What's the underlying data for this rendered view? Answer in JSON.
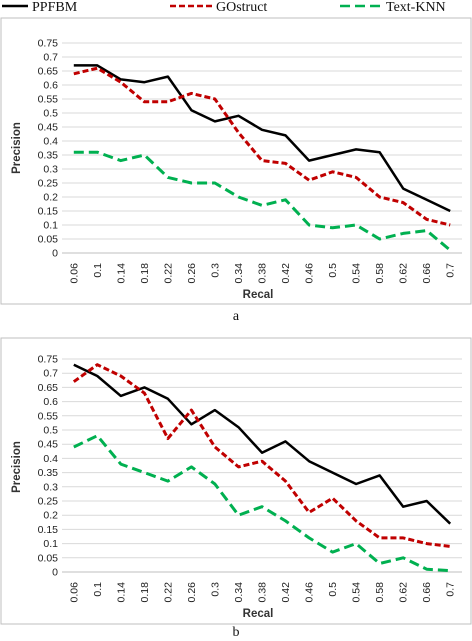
{
  "legend": [
    {
      "name": "PPFBM",
      "color": "#000000",
      "dash": "solid"
    },
    {
      "name": "GOstruct",
      "color": "#c00000",
      "dash": "dashed"
    },
    {
      "name": "Text-KNN",
      "color": "#00b050",
      "dash": "dashed"
    }
  ],
  "chart_data": [
    {
      "type": "line",
      "caption": "a",
      "xlabel": "Recal",
      "ylabel": "Precision",
      "ylim": [
        0,
        0.75
      ],
      "y_ticks": [
        "0",
        "0.05",
        "0.1",
        "0.15",
        "0.2",
        "0.25",
        "0.3",
        "0.35",
        "0.4",
        "0.45",
        "0.5",
        "0.55",
        "0.6",
        "0.65",
        "0.7",
        "0.75"
      ],
      "grid": "horizontal",
      "x": [
        "0.06",
        "0.1",
        "0.14",
        "0.18",
        "0.22",
        "0.26",
        "0.3",
        "0.34",
        "0.38",
        "0.42",
        "0.46",
        "0.5",
        "0.54",
        "0.58",
        "0.62",
        "0.66",
        "0.7"
      ],
      "series": [
        {
          "name": "PPFBM",
          "values": [
            0.67,
            0.67,
            0.62,
            0.61,
            0.63,
            0.51,
            0.47,
            0.49,
            0.44,
            0.42,
            0.33,
            0.35,
            0.37,
            0.36,
            0.23,
            0.19,
            0.15
          ]
        },
        {
          "name": "GOstruct",
          "values": [
            0.64,
            0.66,
            0.61,
            0.54,
            0.54,
            0.57,
            0.55,
            0.43,
            0.33,
            0.32,
            0.26,
            0.29,
            0.27,
            0.2,
            0.18,
            0.12,
            0.1
          ]
        },
        {
          "name": "Text-KNN",
          "values": [
            0.36,
            0.36,
            0.33,
            0.35,
            0.27,
            0.25,
            0.25,
            0.2,
            0.17,
            0.19,
            0.1,
            0.09,
            0.1,
            0.05,
            0.07,
            0.08,
            0.01
          ]
        }
      ]
    },
    {
      "type": "line",
      "caption": "b",
      "xlabel": "Recal",
      "ylabel": "Precision",
      "ylim": [
        0,
        0.75
      ],
      "y_ticks": [
        "0",
        "0.05",
        "0.1",
        "0.15",
        "0.2",
        "0.25",
        "0.3",
        "0.35",
        "0.4",
        "0.45",
        "0.5",
        "0.55",
        "0.6",
        "0.65",
        "0.7",
        "0.75"
      ],
      "grid": "horizontal",
      "x": [
        "0.06",
        "0.1",
        "0.14",
        "0.18",
        "0.22",
        "0.26",
        "0.3",
        "0.34",
        "0.38",
        "0.42",
        "0.46",
        "0.5",
        "0.54",
        "0.58",
        "0.62",
        "0.66",
        "0.7"
      ],
      "series": [
        {
          "name": "PPFBM",
          "values": [
            0.73,
            0.69,
            0.62,
            0.65,
            0.61,
            0.52,
            0.57,
            0.51,
            0.42,
            0.46,
            0.39,
            0.35,
            0.31,
            0.34,
            0.23,
            0.25,
            0.17
          ]
        },
        {
          "name": "GOstruct",
          "values": [
            0.67,
            0.73,
            0.69,
            0.63,
            0.47,
            0.57,
            0.44,
            0.37,
            0.39,
            0.32,
            0.21,
            0.26,
            0.18,
            0.12,
            0.12,
            0.1,
            0.09
          ]
        },
        {
          "name": "Text-KNN",
          "values": [
            0.44,
            0.48,
            0.38,
            0.35,
            0.32,
            0.37,
            0.31,
            0.2,
            0.23,
            0.18,
            0.12,
            0.07,
            0.1,
            0.03,
            0.05,
            0.01,
            0.005
          ]
        }
      ]
    }
  ]
}
